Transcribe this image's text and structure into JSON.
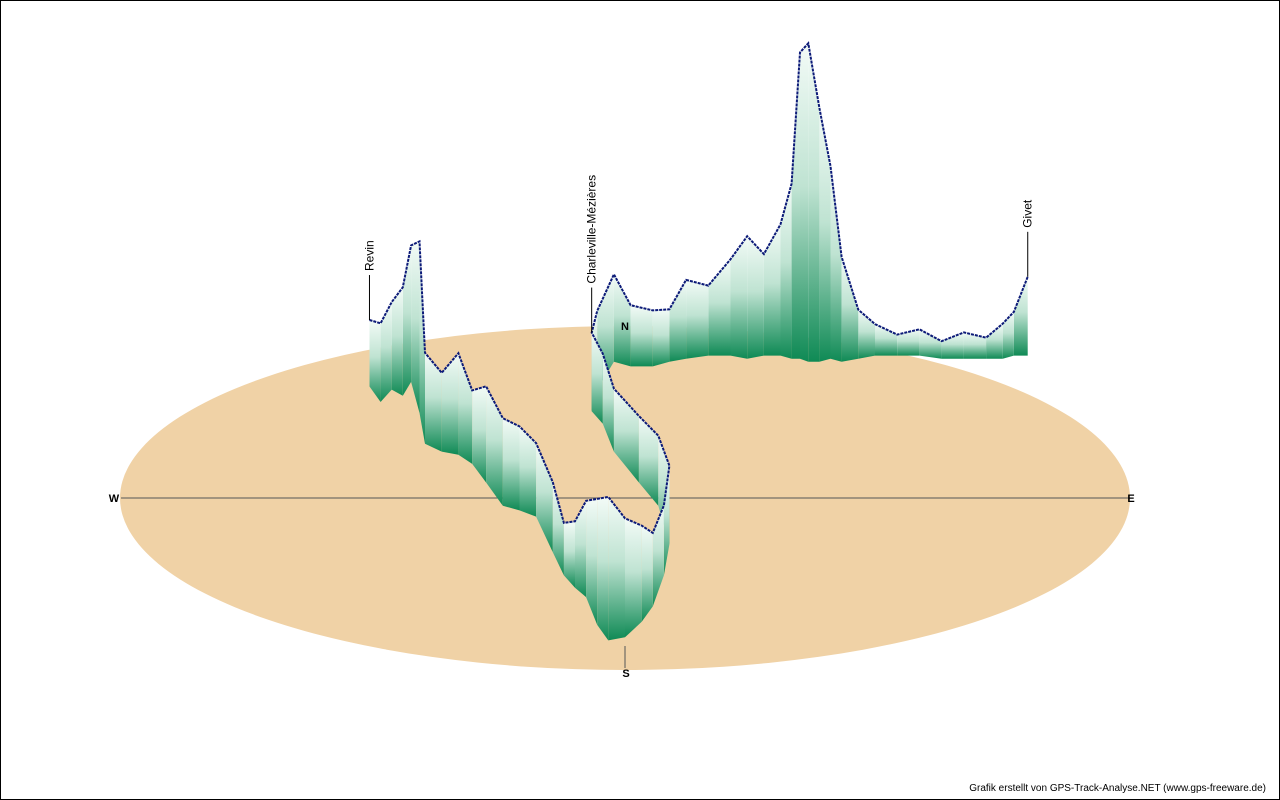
{
  "colors": {
    "ground": "#f0d2a6",
    "axis": "#555555",
    "track": "#0c1a78",
    "wall_top": "#f3fbf7",
    "wall_bottom": "#0f8a55"
  },
  "compass": {
    "north": "N",
    "south": "S",
    "west": "W",
    "east": "E"
  },
  "credit": "Grafik erstellt von GPS-Track-Analyse.NET (www.gps-freeware.de)",
  "chart_data": {
    "type": "3d-elevation-profile",
    "title": "",
    "places": [
      {
        "name": "Revin",
        "lon": -0.92,
        "lat": 0.72
      },
      {
        "name": "Charleville-Mézières",
        "lon": -0.12,
        "lat": 0.56
      },
      {
        "name": "Givet",
        "lon": 1.45,
        "lat": 0.92
      }
    ],
    "track": [
      {
        "lon": -0.92,
        "lat": 0.72,
        "alt": 0.38
      },
      {
        "lon": -0.88,
        "lat": 0.62,
        "alt": 0.45
      },
      {
        "lon": -0.84,
        "lat": 0.7,
        "alt": 0.5
      },
      {
        "lon": -0.8,
        "lat": 0.66,
        "alt": 0.62
      },
      {
        "lon": -0.77,
        "lat": 0.75,
        "alt": 0.78
      },
      {
        "lon": -0.74,
        "lat": 0.55,
        "alt": 0.98
      },
      {
        "lon": -0.72,
        "lat": 0.35,
        "alt": 0.52
      },
      {
        "lon": -0.66,
        "lat": 0.3,
        "alt": 0.45
      },
      {
        "lon": -0.6,
        "lat": 0.28,
        "alt": 0.58
      },
      {
        "lon": -0.55,
        "lat": 0.22,
        "alt": 0.42
      },
      {
        "lon": -0.5,
        "lat": 0.1,
        "alt": 0.55
      },
      {
        "lon": -0.44,
        "lat": -0.05,
        "alt": 0.5
      },
      {
        "lon": -0.38,
        "lat": -0.08,
        "alt": 0.48
      },
      {
        "lon": -0.32,
        "lat": -0.12,
        "alt": 0.42
      },
      {
        "lon": -0.26,
        "lat": -0.35,
        "alt": 0.4
      },
      {
        "lon": -0.22,
        "lat": -0.5,
        "alt": 0.3
      },
      {
        "lon": -0.18,
        "lat": -0.58,
        "alt": 0.38
      },
      {
        "lon": -0.14,
        "lat": -0.64,
        "alt": 0.55
      },
      {
        "lon": -0.1,
        "lat": -0.82,
        "alt": 0.72
      },
      {
        "lon": -0.06,
        "lat": -0.92,
        "alt": 0.82
      },
      {
        "lon": 0.0,
        "lat": -0.9,
        "alt": 0.68
      },
      {
        "lon": 0.06,
        "lat": -0.8,
        "alt": 0.55
      },
      {
        "lon": 0.1,
        "lat": -0.7,
        "alt": 0.42
      },
      {
        "lon": 0.14,
        "lat": -0.5,
        "alt": 0.4
      },
      {
        "lon": 0.16,
        "lat": -0.3,
        "alt": 0.45
      },
      {
        "lon": 0.12,
        "lat": -0.05,
        "alt": 0.4
      },
      {
        "lon": 0.05,
        "lat": 0.1,
        "alt": 0.38
      },
      {
        "lon": -0.04,
        "lat": 0.3,
        "alt": 0.36
      },
      {
        "lon": -0.08,
        "lat": 0.48,
        "alt": 0.4
      },
      {
        "lon": -0.12,
        "lat": 0.56,
        "alt": 0.45
      },
      {
        "lon": -0.1,
        "lat": 0.7,
        "alt": 0.45
      },
      {
        "lon": -0.04,
        "lat": 0.88,
        "alt": 0.5
      },
      {
        "lon": 0.02,
        "lat": 0.85,
        "alt": 0.35
      },
      {
        "lon": 0.1,
        "lat": 0.85,
        "alt": 0.32
      },
      {
        "lon": 0.16,
        "lat": 0.88,
        "alt": 0.3
      },
      {
        "lon": 0.22,
        "lat": 0.9,
        "alt": 0.45
      },
      {
        "lon": 0.3,
        "lat": 0.92,
        "alt": 0.4
      },
      {
        "lon": 0.38,
        "lat": 0.92,
        "alt": 0.55
      },
      {
        "lon": 0.44,
        "lat": 0.9,
        "alt": 0.7
      },
      {
        "lon": 0.5,
        "lat": 0.92,
        "alt": 0.58
      },
      {
        "lon": 0.56,
        "lat": 0.92,
        "alt": 0.75
      },
      {
        "lon": 0.6,
        "lat": 0.9,
        "alt": 1.0
      },
      {
        "lon": 0.63,
        "lat": 0.9,
        "alt": 1.75
      },
      {
        "lon": 0.66,
        "lat": 0.88,
        "alt": 1.82
      },
      {
        "lon": 0.7,
        "lat": 0.88,
        "alt": 1.45
      },
      {
        "lon": 0.74,
        "lat": 0.9,
        "alt": 1.1
      },
      {
        "lon": 0.78,
        "lat": 0.88,
        "alt": 0.6
      },
      {
        "lon": 0.84,
        "lat": 0.9,
        "alt": 0.28
      },
      {
        "lon": 0.9,
        "lat": 0.92,
        "alt": 0.18
      },
      {
        "lon": 0.98,
        "lat": 0.92,
        "alt": 0.12
      },
      {
        "lon": 1.06,
        "lat": 0.92,
        "alt": 0.15
      },
      {
        "lon": 1.14,
        "lat": 0.9,
        "alt": 0.1
      },
      {
        "lon": 1.22,
        "lat": 0.9,
        "alt": 0.15
      },
      {
        "lon": 1.3,
        "lat": 0.9,
        "alt": 0.12
      },
      {
        "lon": 1.36,
        "lat": 0.9,
        "alt": 0.2
      },
      {
        "lon": 1.4,
        "lat": 0.92,
        "alt": 0.25
      },
      {
        "lon": 1.45,
        "lat": 0.92,
        "alt": 0.45
      }
    ]
  }
}
